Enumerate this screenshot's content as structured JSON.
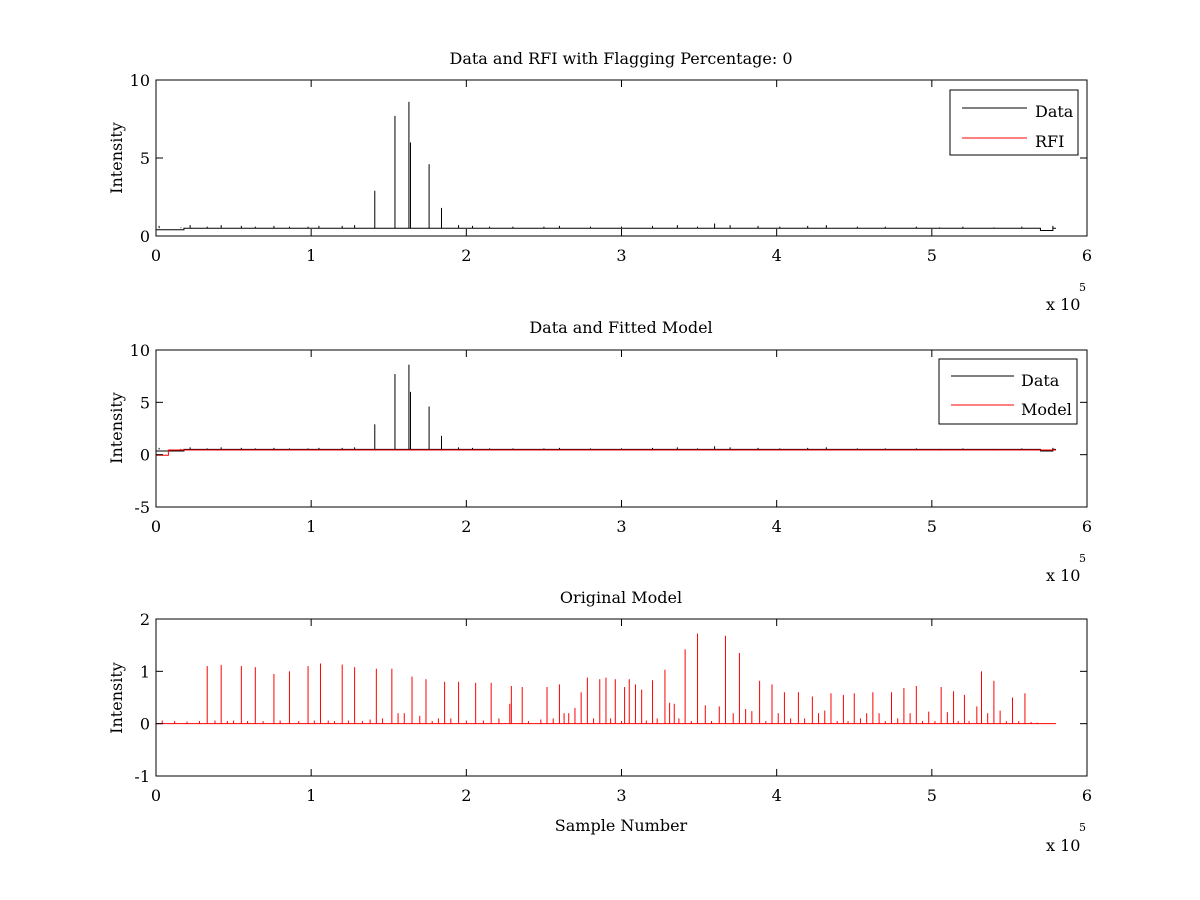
{
  "figure": {
    "background": "#ffffff"
  },
  "colors": {
    "data": "#000000",
    "rfi": "#ff0000",
    "model": "#ff0000",
    "axes": "#000000"
  },
  "chart_data": [
    {
      "id": "top",
      "type": "line",
      "title": "Data and RFI with Flagging Percentage: 0",
      "xlabel": "",
      "ylabel": "Intensity",
      "xlim": [
        0,
        600000
      ],
      "ylim": [
        0,
        10
      ],
      "xticks": [
        0,
        1,
        2,
        3,
        4,
        5,
        6
      ],
      "yticks": [
        0,
        5,
        10
      ],
      "x_exponent_base": "x 10",
      "x_exponent_power": "5",
      "legend": {
        "placement": "top-right",
        "entries": [
          {
            "label": "Data",
            "color": "#000000"
          },
          {
            "label": "RFI",
            "color": "#ff0000"
          }
        ]
      },
      "series": [
        {
          "name": "Data",
          "color": "#000000",
          "baseline": 0.5,
          "x_end": 580000,
          "dips": [
            {
              "x0": 0,
              "x1": 18000,
              "y": 0.4
            },
            {
              "x0": 570000,
              "x1": 578000,
              "y": 0.35
            }
          ],
          "spikes": [
            [
              2000,
              0.65
            ],
            [
              16000,
              0.55
            ],
            [
              22000,
              0.7
            ],
            [
              33000,
              0.6
            ],
            [
              42000,
              0.7
            ],
            [
              55000,
              0.65
            ],
            [
              64000,
              0.6
            ],
            [
              76000,
              0.65
            ],
            [
              86000,
              0.6
            ],
            [
              98000,
              0.6
            ],
            [
              105000,
              0.65
            ],
            [
              120000,
              0.65
            ],
            [
              128000,
              0.7
            ],
            [
              141000,
              2.9
            ],
            [
              154000,
              7.7
            ],
            [
              163000,
              8.6
            ],
            [
              164000,
              6.0
            ],
            [
              176000,
              4.6
            ],
            [
              184000,
              1.8
            ],
            [
              195000,
              0.7
            ],
            [
              204000,
              0.65
            ],
            [
              215000,
              0.6
            ],
            [
              230000,
              0.6
            ],
            [
              250000,
              0.6
            ],
            [
              260000,
              0.65
            ],
            [
              280000,
              0.6
            ],
            [
              300000,
              0.6
            ],
            [
              320000,
              0.65
            ],
            [
              336000,
              0.7
            ],
            [
              349000,
              0.6
            ],
            [
              360000,
              0.8
            ],
            [
              370000,
              0.7
            ],
            [
              388000,
              0.65
            ],
            [
              402000,
              0.6
            ],
            [
              420000,
              0.65
            ],
            [
              432000,
              0.7
            ],
            [
              452000,
              0.6
            ],
            [
              470000,
              0.6
            ],
            [
              490000,
              0.6
            ],
            [
              505000,
              0.55
            ],
            [
              520000,
              0.6
            ],
            [
              540000,
              0.55
            ],
            [
              558000,
              0.6
            ],
            [
              578000,
              0.65
            ]
          ]
        },
        {
          "name": "RFI",
          "color": "#ff0000",
          "values": []
        }
      ]
    },
    {
      "id": "middle",
      "type": "line",
      "title": "Data and Fitted Model",
      "xlabel": "",
      "ylabel": "Intensity",
      "xlim": [
        0,
        600000
      ],
      "ylim": [
        -5,
        10
      ],
      "xticks": [
        0,
        1,
        2,
        3,
        4,
        5,
        6
      ],
      "yticks": [
        -5,
        0,
        5,
        10
      ],
      "x_exponent_base": "x 10",
      "x_exponent_power": "5",
      "legend": {
        "placement": "top-right",
        "entries": [
          {
            "label": "Data",
            "color": "#000000"
          },
          {
            "label": "Model",
            "color": "#ff0000"
          }
        ]
      },
      "series": [
        {
          "name": "Data",
          "color": "#000000",
          "baseline": 0.5,
          "x_end": 580000,
          "dips": [
            {
              "x0": 0,
              "x1": 18000,
              "y": 0.35
            },
            {
              "x0": 570000,
              "x1": 578000,
              "y": 0.35
            }
          ],
          "spikes": [
            [
              2000,
              0.65
            ],
            [
              16000,
              0.55
            ],
            [
              22000,
              0.7
            ],
            [
              33000,
              0.6
            ],
            [
              42000,
              0.7
            ],
            [
              55000,
              0.65
            ],
            [
              64000,
              0.6
            ],
            [
              76000,
              0.65
            ],
            [
              86000,
              0.6
            ],
            [
              98000,
              0.6
            ],
            [
              105000,
              0.65
            ],
            [
              120000,
              0.65
            ],
            [
              128000,
              0.7
            ],
            [
              141000,
              2.9
            ],
            [
              154000,
              7.7
            ],
            [
              163000,
              8.6
            ],
            [
              164000,
              6.0
            ],
            [
              176000,
              4.6
            ],
            [
              184000,
              1.8
            ],
            [
              195000,
              0.7
            ],
            [
              204000,
              0.65
            ],
            [
              215000,
              0.6
            ],
            [
              230000,
              0.6
            ],
            [
              250000,
              0.6
            ],
            [
              260000,
              0.65
            ],
            [
              280000,
              0.6
            ],
            [
              300000,
              0.6
            ],
            [
              320000,
              0.65
            ],
            [
              336000,
              0.7
            ],
            [
              349000,
              0.6
            ],
            [
              360000,
              0.8
            ],
            [
              370000,
              0.7
            ],
            [
              388000,
              0.65
            ],
            [
              402000,
              0.6
            ],
            [
              420000,
              0.65
            ],
            [
              432000,
              0.7
            ],
            [
              452000,
              0.6
            ],
            [
              470000,
              0.6
            ],
            [
              490000,
              0.6
            ],
            [
              505000,
              0.55
            ],
            [
              520000,
              0.6
            ],
            [
              540000,
              0.55
            ],
            [
              558000,
              0.6
            ],
            [
              578000,
              0.65
            ]
          ]
        },
        {
          "name": "Model",
          "color": "#ff0000",
          "baseline": 0.45,
          "x_end": 580000,
          "dips": [
            {
              "x0": 0,
              "x1": 8000,
              "y": -0.05
            }
          ],
          "spikes": []
        }
      ]
    },
    {
      "id": "bottom",
      "type": "line",
      "title": "Original Model",
      "xlabel": "Sample Number",
      "ylabel": "Intensity",
      "xlim": [
        0,
        600000
      ],
      "ylim": [
        -1,
        2
      ],
      "xticks": [
        0,
        1,
        2,
        3,
        4,
        5,
        6
      ],
      "yticks": [
        -1,
        0,
        1,
        2
      ],
      "x_exponent_base": "x 10",
      "x_exponent_power": "5",
      "legend": null,
      "series": [
        {
          "name": "Model",
          "color": "#ff0000",
          "baseline": 0,
          "x_end": 580000,
          "dips": [],
          "spikes": [
            [
              4000,
              0.06
            ],
            [
              12000,
              0.05
            ],
            [
              20000,
              0.04
            ],
            [
              28000,
              0.05
            ],
            [
              33000,
              1.1
            ],
            [
              38000,
              0.06
            ],
            [
              42000,
              1.12
            ],
            [
              46000,
              0.05
            ],
            [
              50000,
              0.06
            ],
            [
              55000,
              1.1
            ],
            [
              59000,
              0.05
            ],
            [
              64000,
              1.08
            ],
            [
              69000,
              0.05
            ],
            [
              76000,
              0.95
            ],
            [
              80000,
              0.06
            ],
            [
              86000,
              1.0
            ],
            [
              92000,
              0.05
            ],
            [
              98000,
              1.1
            ],
            [
              102000,
              0.06
            ],
            [
              106000,
              1.15
            ],
            [
              111000,
              0.06
            ],
            [
              115000,
              0.05
            ],
            [
              120000,
              1.13
            ],
            [
              124000,
              0.06
            ],
            [
              128000,
              1.08
            ],
            [
              133000,
              0.05
            ],
            [
              138000,
              0.08
            ],
            [
              142000,
              1.05
            ],
            [
              146000,
              0.1
            ],
            [
              152000,
              1.05
            ],
            [
              156000,
              0.2
            ],
            [
              160000,
              0.2
            ],
            [
              165000,
              0.9
            ],
            [
              170000,
              0.15
            ],
            [
              174000,
              0.85
            ],
            [
              178000,
              0.05
            ],
            [
              182000,
              0.1
            ],
            [
              186000,
              0.8
            ],
            [
              190000,
              0.1
            ],
            [
              195000,
              0.8
            ],
            [
              200000,
              0.06
            ],
            [
              206000,
              0.78
            ],
            [
              211000,
              0.06
            ],
            [
              216000,
              0.78
            ],
            [
              221000,
              0.1
            ],
            [
              228000,
              0.38
            ],
            [
              229000,
              0.72
            ],
            [
              236000,
              0.7
            ],
            [
              240000,
              0.05
            ],
            [
              248000,
              0.08
            ],
            [
              252000,
              0.7
            ],
            [
              256000,
              0.1
            ],
            [
              260000,
              0.75
            ],
            [
              263000,
              0.2
            ],
            [
              266000,
              0.2
            ],
            [
              270000,
              0.3
            ],
            [
              274000,
              0.6
            ],
            [
              278000,
              0.88
            ],
            [
              282000,
              0.1
            ],
            [
              286000,
              0.85
            ],
            [
              290000,
              0.88
            ],
            [
              293000,
              0.1
            ],
            [
              296000,
              0.85
            ],
            [
              300000,
              0.05
            ],
            [
              302000,
              0.7
            ],
            [
              305000,
              0.85
            ],
            [
              309000,
              0.75
            ],
            [
              313000,
              0.65
            ],
            [
              316000,
              0.06
            ],
            [
              320000,
              0.83
            ],
            [
              323000,
              0.1
            ],
            [
              328000,
              1.03
            ],
            [
              331000,
              0.4
            ],
            [
              334000,
              0.38
            ],
            [
              337000,
              0.1
            ],
            [
              341000,
              1.42
            ],
            [
              345000,
              0.05
            ],
            [
              349000,
              1.72
            ],
            [
              354000,
              0.35
            ],
            [
              358000,
              0.05
            ],
            [
              363000,
              0.33
            ],
            [
              367000,
              1.68
            ],
            [
              372000,
              0.2
            ],
            [
              376000,
              1.35
            ],
            [
              380000,
              0.28
            ],
            [
              384000,
              0.24
            ],
            [
              389000,
              0.82
            ],
            [
              393000,
              0.05
            ],
            [
              397000,
              0.75
            ],
            [
              401000,
              0.2
            ],
            [
              405000,
              0.6
            ],
            [
              409000,
              0.1
            ],
            [
              414000,
              0.6
            ],
            [
              418000,
              0.1
            ],
            [
              423000,
              0.52
            ],
            [
              427000,
              0.2
            ],
            [
              431000,
              0.25
            ],
            [
              435000,
              0.58
            ],
            [
              439000,
              0.05
            ],
            [
              443000,
              0.55
            ],
            [
              446000,
              0.05
            ],
            [
              450000,
              0.58
            ],
            [
              454000,
              0.1
            ],
            [
              458000,
              0.2
            ],
            [
              462000,
              0.6
            ],
            [
              466000,
              0.2
            ],
            [
              470000,
              0.05
            ],
            [
              474000,
              0.6
            ],
            [
              478000,
              0.1
            ],
            [
              482000,
              0.68
            ],
            [
              486000,
              0.2
            ],
            [
              490000,
              0.72
            ],
            [
              494000,
              0.05
            ],
            [
              498000,
              0.23
            ],
            [
              502000,
              0.05
            ],
            [
              506000,
              0.7
            ],
            [
              510000,
              0.22
            ],
            [
              514000,
              0.62
            ],
            [
              517000,
              0.05
            ],
            [
              521000,
              0.55
            ],
            [
              524000,
              0.05
            ],
            [
              529000,
              0.33
            ],
            [
              532000,
              1.0
            ],
            [
              536000,
              0.2
            ],
            [
              540000,
              0.82
            ],
            [
              544000,
              0.25
            ],
            [
              548000,
              0.05
            ],
            [
              552000,
              0.5
            ],
            [
              556000,
              0.05
            ],
            [
              560000,
              0.58
            ],
            [
              564000,
              0.03
            ],
            [
              568000,
              0.02
            ]
          ]
        }
      ]
    }
  ]
}
